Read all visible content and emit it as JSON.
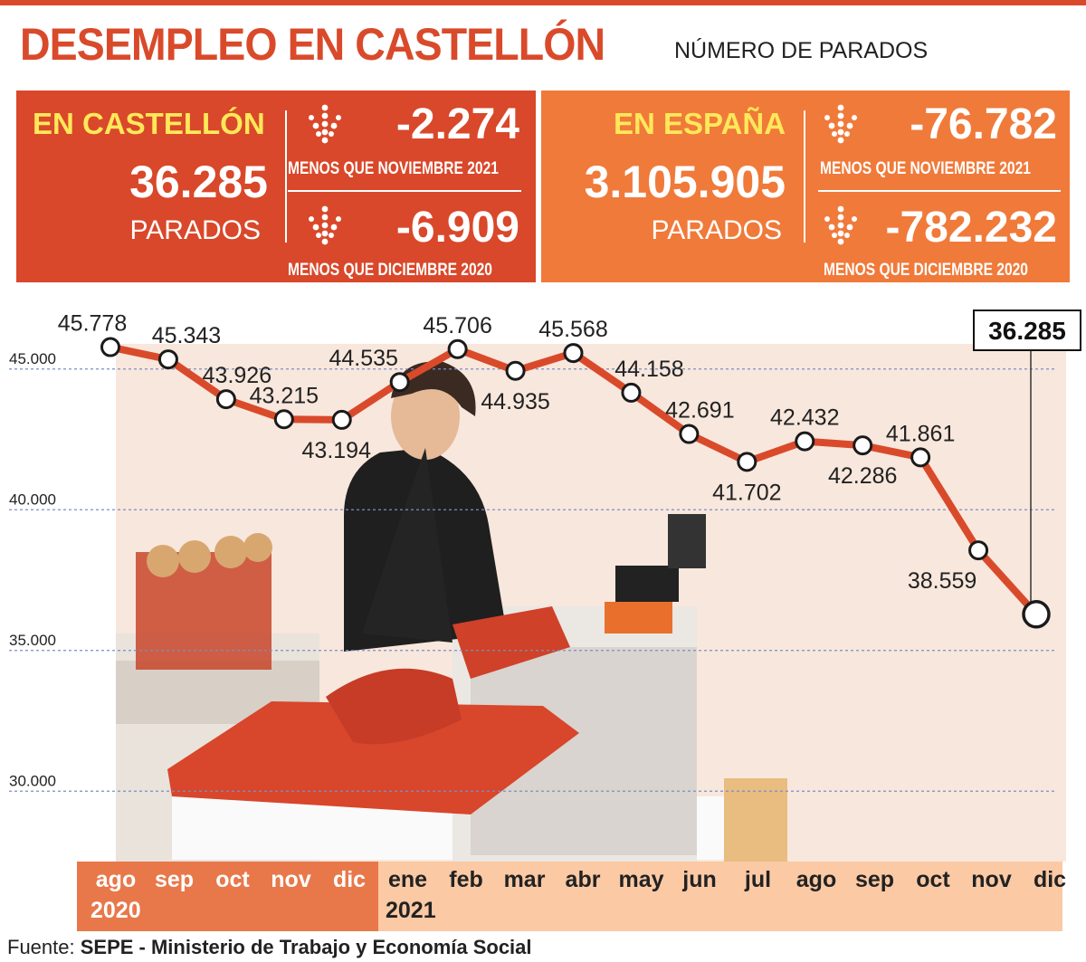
{
  "header": {
    "title": "DESEMPLEO EN CASTELLÓN",
    "subtitle": "NÚMERO DE PARADOS"
  },
  "castellon": {
    "region": "EN CASTELLÓN",
    "total": "36.285",
    "unit": "PARADOS",
    "delta_month": "-2.274",
    "delta_month_caption": "MENOS QUE NOVIEMBRE 2021",
    "delta_year": "-6.909",
    "delta_year_caption": "MENOS QUE DICIEMBRE 2020"
  },
  "espana": {
    "region": "EN ESPAÑA",
    "total": "3.105.905",
    "unit": "PARADOS",
    "delta_month": "-76.782",
    "delta_month_caption": "MENOS QUE NOVIEMBRE 2021",
    "delta_year": "-782.232",
    "delta_year_caption": "MENOS QUE DICIEMBRE 2020"
  },
  "colors": {
    "accent": "#d94a2b",
    "castellon_panel": "#d9482a",
    "espana_panel": "#f07a3a",
    "region_label": "#ffe85a",
    "line": "#d94a2b",
    "band_2020": "#e8784a",
    "band_2021": "#fbc9a4"
  },
  "icons": {
    "delta": "down-arrow-dots-icon"
  },
  "chart_data": {
    "type": "line",
    "categories": [
      "ago",
      "sep",
      "oct",
      "nov",
      "dic",
      "ene",
      "feb",
      "mar",
      "abr",
      "may",
      "jun",
      "jul",
      "ago",
      "sep",
      "oct",
      "nov",
      "dic"
    ],
    "years": [
      "2020",
      "2021"
    ],
    "series": [
      {
        "values": [
          45778,
          45343,
          43926,
          43215,
          43194,
          44535,
          45706,
          44935,
          45568,
          44158,
          42691,
          41702,
          42432,
          42286,
          41861,
          38559,
          36285
        ],
        "labels": [
          "45.778",
          "45.343",
          "43.926",
          "43.215",
          "43.194",
          "44.535",
          "45.706",
          "44.935",
          "45.568",
          "44.158",
          "42.691",
          "41.702",
          "42.432",
          "42.286",
          "41.861",
          "38.559",
          "36.285"
        ]
      }
    ],
    "highlight_label": "36.285",
    "yticks": [
      30000,
      35000,
      40000,
      45000
    ],
    "ytick_labels": [
      "30.000",
      "35.000",
      "40.000",
      "45.000"
    ],
    "ylim": [
      27500,
      47500
    ],
    "grid": "dotted horizontal",
    "title": "",
    "xlabel": "",
    "ylabel": ""
  },
  "footer": {
    "source_prefix": "Fuente: ",
    "source_name": "SEPE - Ministerio de Trabajo y Economía Social"
  }
}
